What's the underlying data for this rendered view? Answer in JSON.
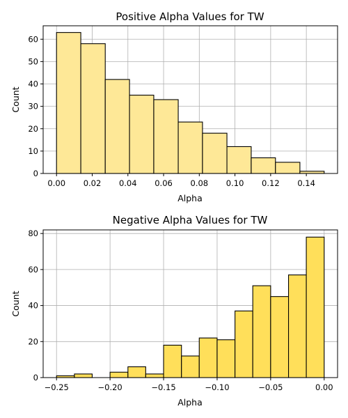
{
  "chart_data": [
    {
      "type": "bar",
      "title": "Positive Alpha Values for TW",
      "xlabel": "Alpha",
      "ylabel": "Count",
      "color": "#fee897",
      "edgecolor": "#000000",
      "grid": true,
      "xlim": [
        -0.0075,
        0.1575
      ],
      "ylim": [
        0,
        66
      ],
      "xticks": [
        0.0,
        0.02,
        0.04,
        0.06,
        0.08,
        0.1,
        0.12,
        0.14
      ],
      "xtick_labels": [
        "0.00",
        "0.02",
        "0.04",
        "0.06",
        "0.08",
        "0.10",
        "0.12",
        "0.14"
      ],
      "yticks": [
        0,
        10,
        20,
        30,
        40,
        50,
        60
      ],
      "ytick_labels": [
        "0",
        "10",
        "20",
        "30",
        "40",
        "50",
        "60"
      ],
      "bins": [
        {
          "x0": 0.0,
          "x1": 0.0136,
          "count": 63
        },
        {
          "x0": 0.0136,
          "x1": 0.0273,
          "count": 58
        },
        {
          "x0": 0.0273,
          "x1": 0.0409,
          "count": 42
        },
        {
          "x0": 0.0409,
          "x1": 0.0545,
          "count": 35
        },
        {
          "x0": 0.0545,
          "x1": 0.0682,
          "count": 33
        },
        {
          "x0": 0.0682,
          "x1": 0.0818,
          "count": 23
        },
        {
          "x0": 0.0818,
          "x1": 0.0955,
          "count": 18
        },
        {
          "x0": 0.0955,
          "x1": 0.1091,
          "count": 12
        },
        {
          "x0": 0.1091,
          "x1": 0.1227,
          "count": 7
        },
        {
          "x0": 0.1227,
          "x1": 0.1364,
          "count": 5
        },
        {
          "x0": 0.1364,
          "x1": 0.15,
          "count": 1
        }
      ]
    },
    {
      "type": "bar",
      "title": "Negative Alpha Values for TW",
      "xlabel": "Alpha",
      "ylabel": "Count",
      "color": "#ffdf5a",
      "edgecolor": "#000000",
      "grid": true,
      "xlim": [
        -0.2625,
        0.0125
      ],
      "ylim": [
        0,
        82
      ],
      "xticks": [
        -0.25,
        -0.2,
        -0.15,
        -0.1,
        -0.05,
        0.0
      ],
      "xtick_labels": [
        "−0.25",
        "−0.20",
        "−0.15",
        "−0.10",
        "−0.05",
        "0.00"
      ],
      "yticks": [
        0,
        20,
        40,
        60,
        80
      ],
      "ytick_labels": [
        "0",
        "20",
        "40",
        "60",
        "80"
      ],
      "bins": [
        {
          "x0": -0.25,
          "x1": -0.2333,
          "count": 1
        },
        {
          "x0": -0.2333,
          "x1": -0.2167,
          "count": 2
        },
        {
          "x0": -0.2167,
          "x1": -0.2,
          "count": 0
        },
        {
          "x0": -0.2,
          "x1": -0.1833,
          "count": 3
        },
        {
          "x0": -0.1833,
          "x1": -0.1667,
          "count": 6
        },
        {
          "x0": -0.1667,
          "x1": -0.15,
          "count": 2
        },
        {
          "x0": -0.15,
          "x1": -0.1333,
          "count": 18
        },
        {
          "x0": -0.1333,
          "x1": -0.1167,
          "count": 12
        },
        {
          "x0": -0.1167,
          "x1": -0.1,
          "count": 22
        },
        {
          "x0": -0.1,
          "x1": -0.0833,
          "count": 21
        },
        {
          "x0": -0.0833,
          "x1": -0.0667,
          "count": 37
        },
        {
          "x0": -0.0667,
          "x1": -0.05,
          "count": 51
        },
        {
          "x0": -0.05,
          "x1": -0.0333,
          "count": 45
        },
        {
          "x0": -0.0333,
          "x1": -0.0167,
          "count": 57
        },
        {
          "x0": -0.0167,
          "x1": 0.0,
          "count": 78
        }
      ]
    }
  ]
}
